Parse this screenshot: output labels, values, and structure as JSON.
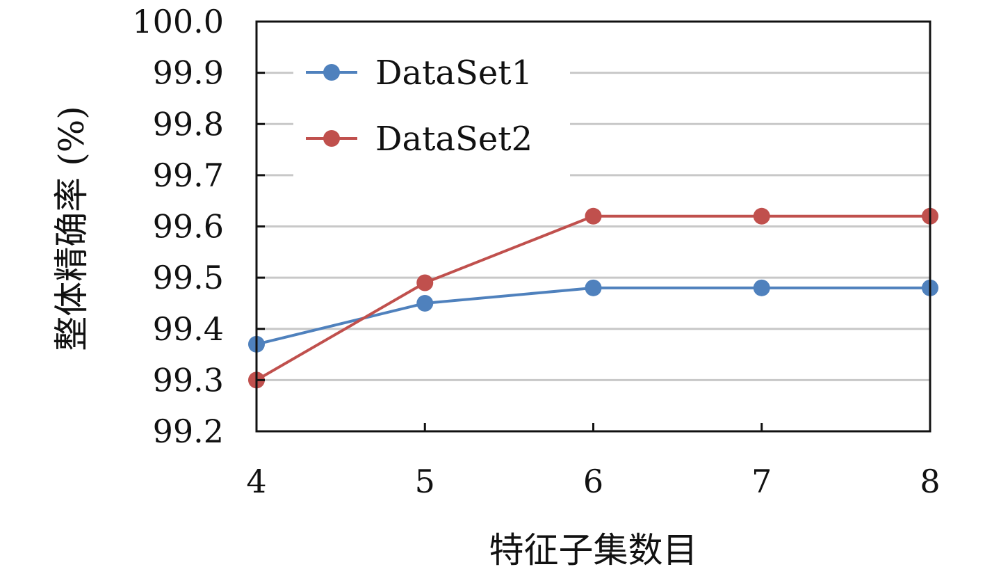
{
  "chart_data": {
    "type": "line",
    "title": "",
    "xlabel": "特征子集数目",
    "ylabel": "整体精确率 (%)",
    "x": [
      4,
      5,
      6,
      7,
      8
    ],
    "x_ticks": [
      "4",
      "5",
      "6",
      "7",
      "8"
    ],
    "xlim": [
      4,
      8
    ],
    "ylim": [
      99.2,
      100.0
    ],
    "y_ticks": [
      "99.2",
      "99.3",
      "99.4",
      "99.5",
      "99.6",
      "99.7",
      "99.8",
      "99.9",
      "100.0"
    ],
    "grid": "horizontal",
    "legend": "top-left",
    "series": [
      {
        "name": "DataSet1",
        "color": "#4f81bd",
        "values": [
          99.37,
          99.45,
          99.48,
          99.48,
          99.48
        ]
      },
      {
        "name": "DataSet2",
        "color": "#c0504d",
        "values": [
          99.3,
          99.49,
          99.62,
          99.62,
          99.62
        ]
      }
    ]
  }
}
